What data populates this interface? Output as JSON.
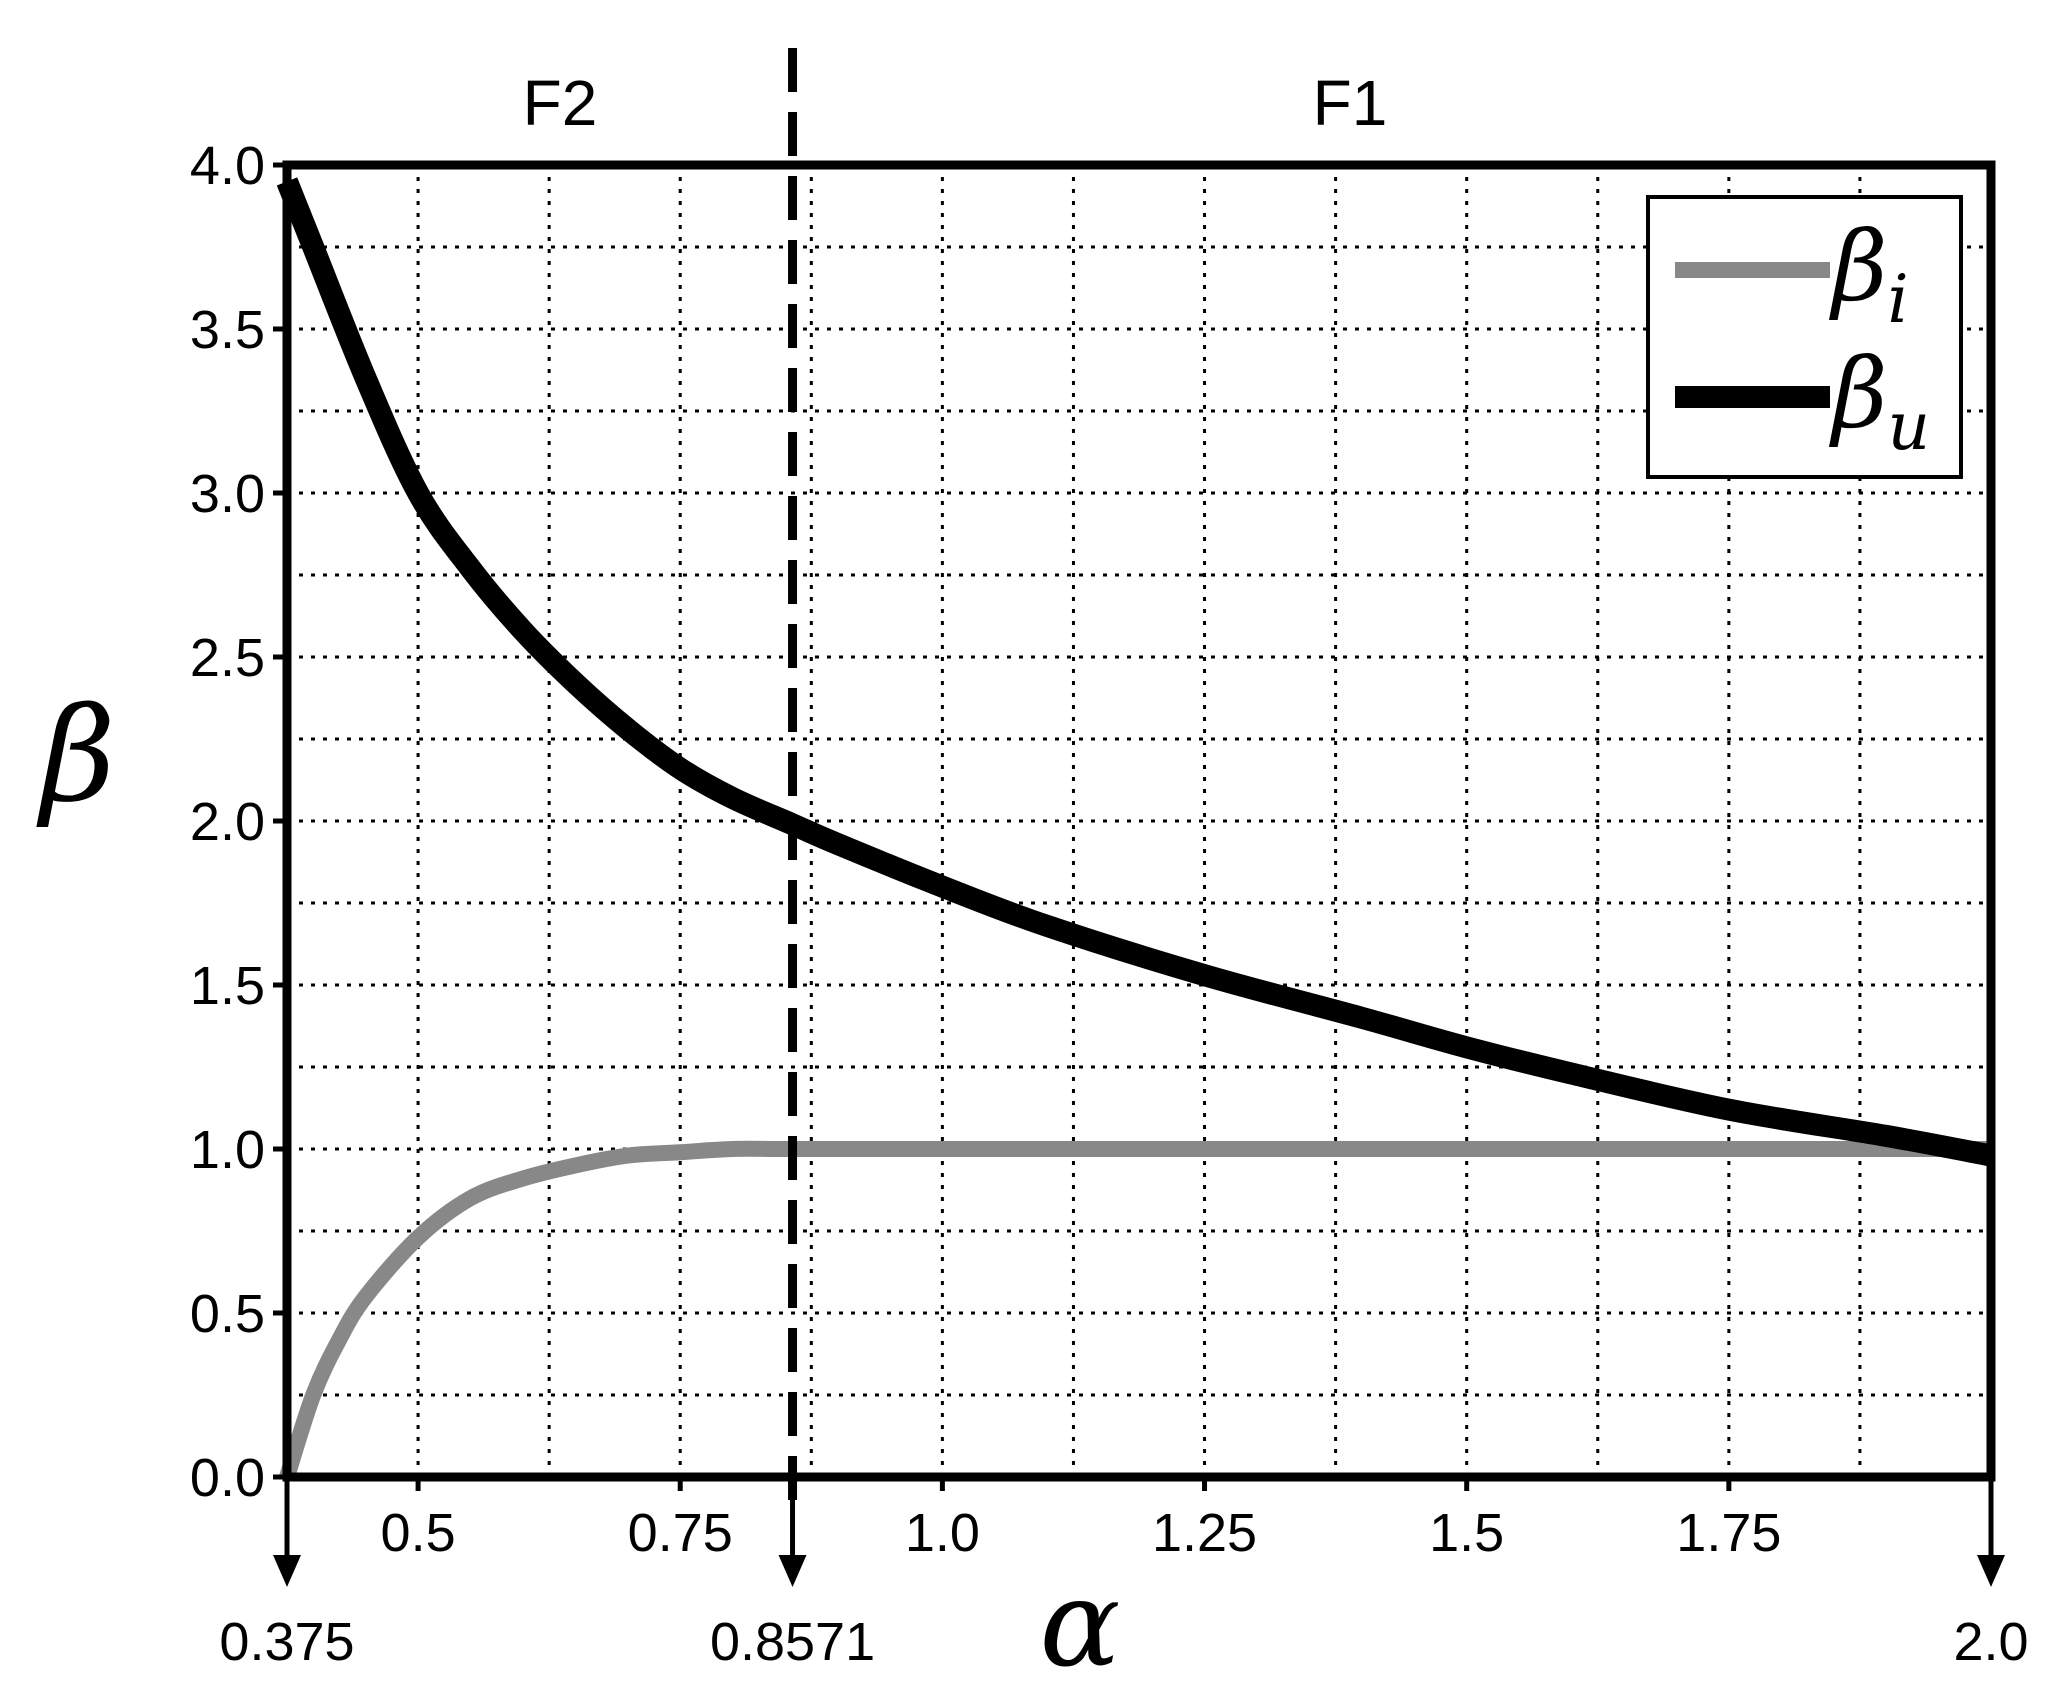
{
  "chart_data": {
    "type": "line",
    "xlabel": "α",
    "ylabel": "β",
    "xlim": [
      0.375,
      2.0
    ],
    "ylim": [
      0.0,
      4.0
    ],
    "x_ticks": [
      0.375,
      0.5,
      0.75,
      0.8571,
      1.0,
      1.25,
      1.5,
      1.75,
      2.0
    ],
    "x_tick_labels": [
      "0.5",
      "0.75",
      "1.0",
      "1.25",
      "1.5",
      "1.75"
    ],
    "x_marked_values": [
      "0.375",
      "0.8571",
      "2.0"
    ],
    "y_ticks": [
      0.0,
      0.5,
      1.0,
      1.5,
      2.0,
      2.5,
      3.0,
      3.5,
      4.0
    ],
    "y_tick_labels": [
      "0.0",
      "0.5",
      "1.0",
      "1.5",
      "2.0",
      "2.5",
      "3.0",
      "3.5",
      "4.0"
    ],
    "grid": true,
    "grid_style": "dotted",
    "legend_position": "top-right",
    "regions": [
      {
        "label": "F2",
        "x_range": [
          0.375,
          0.8571
        ]
      },
      {
        "label": "F1",
        "x_range": [
          0.8571,
          2.0
        ]
      }
    ],
    "boundary_x": 0.8571,
    "series": [
      {
        "name": "β",
        "subscript": "i",
        "color": "#888888",
        "x": [
          0.375,
          0.4,
          0.425,
          0.45,
          0.5,
          0.55,
          0.6,
          0.65,
          0.7,
          0.75,
          0.8,
          0.8571,
          1.0,
          1.25,
          1.5,
          1.75,
          2.0
        ],
        "y": [
          0.0,
          0.25,
          0.42,
          0.55,
          0.73,
          0.85,
          0.91,
          0.95,
          0.98,
          0.99,
          1.0,
          1.0,
          1.0,
          1.0,
          1.0,
          1.0,
          1.0
        ]
      },
      {
        "name": "β",
        "subscript": "u",
        "color": "#000000",
        "x": [
          0.375,
          0.4,
          0.45,
          0.5,
          0.55,
          0.6,
          0.65,
          0.7,
          0.75,
          0.8,
          0.8571,
          0.9,
          1.0,
          1.1,
          1.25,
          1.4,
          1.5,
          1.6,
          1.75,
          1.9,
          2.0
        ],
        "y": [
          3.95,
          3.75,
          3.35,
          3.0,
          2.77,
          2.58,
          2.42,
          2.28,
          2.16,
          2.07,
          1.99,
          1.93,
          1.8,
          1.68,
          1.53,
          1.4,
          1.31,
          1.23,
          1.12,
          1.04,
          0.98
        ]
      }
    ]
  }
}
